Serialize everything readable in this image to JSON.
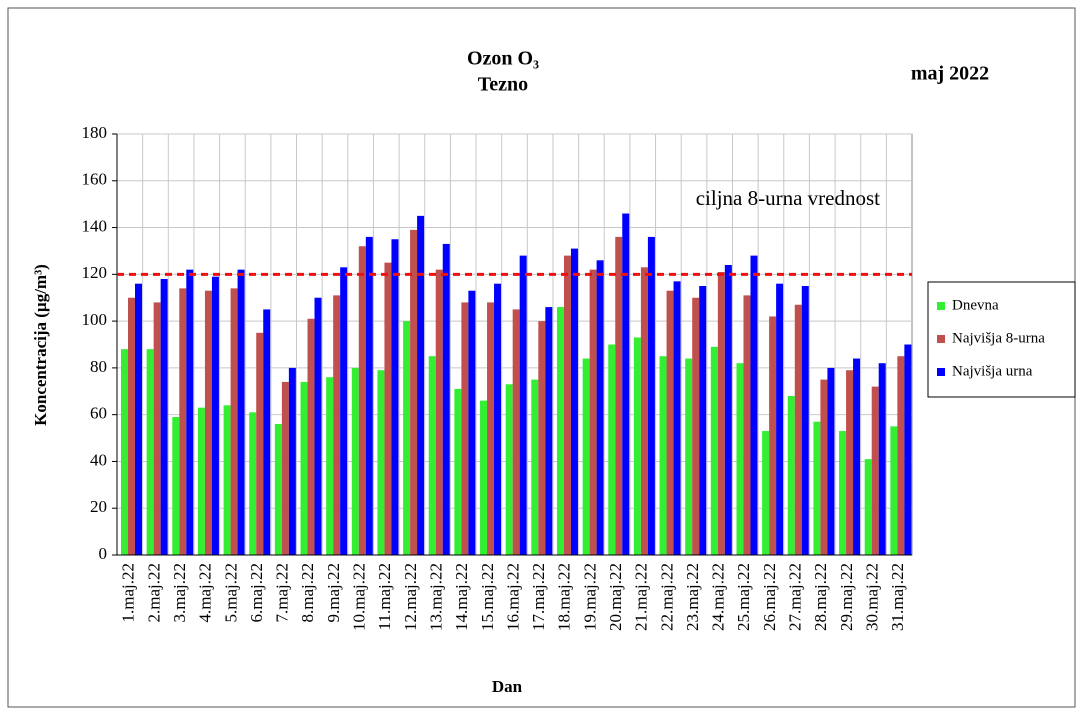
{
  "chart_data": {
    "type": "bar",
    "title": "Ozon O₃",
    "subtitle": "Tezno",
    "period": "maj 2022",
    "x_label": "Dan",
    "y_label": "Koncentracija  (µg/m³)",
    "categories": [
      "1.maj.22",
      "2.maj.22",
      "3.maj.22",
      "4.maj.22",
      "5.maj.22",
      "6.maj.22",
      "7.maj.22",
      "8.maj.22",
      "9.maj.22",
      "10.maj.22",
      "11.maj.22",
      "12.maj.22",
      "13.maj.22",
      "14.maj.22",
      "15.maj.22",
      "16.maj.22",
      "17.maj.22",
      "18.maj.22",
      "19.maj.22",
      "20.maj.22",
      "21.maj.22",
      "22.maj.22",
      "23.maj.22",
      "24.maj.22",
      "25.maj.22",
      "26.maj.22",
      "27.maj.22",
      "28.maj.22",
      "29.maj.22",
      "30.maj.22",
      "31.maj.22"
    ],
    "series": [
      {
        "name": "Dnevna",
        "color": "#33ee33",
        "values": [
          88,
          88,
          59,
          63,
          64,
          61,
          56,
          74,
          76,
          80,
          79,
          100,
          85,
          71,
          66,
          73,
          75,
          106,
          84,
          90,
          93,
          85,
          84,
          89,
          82,
          53,
          68,
          57,
          53,
          41,
          55
        ]
      },
      {
        "name": "Najvišja 8-urna",
        "color": "#c0504d",
        "values": [
          110,
          108,
          114,
          113,
          114,
          95,
          74,
          101,
          111,
          132,
          125,
          139,
          122,
          108,
          108,
          105,
          100,
          128,
          122,
          136,
          123,
          113,
          110,
          121,
          111,
          102,
          107,
          75,
          79,
          72,
          85
        ]
      },
      {
        "name": "Najvišja urna",
        "color": "#0000ff",
        "values": [
          116,
          118,
          122,
          119,
          122,
          105,
          80,
          110,
          123,
          136,
          135,
          145,
          133,
          113,
          116,
          128,
          106,
          131,
          126,
          146,
          136,
          117,
          115,
          124,
          128,
          116,
          115,
          80,
          84,
          82,
          90
        ]
      }
    ],
    "reference": {
      "value": 120,
      "label": "ciljna 8-urna vrednost",
      "color": "#ee1111"
    },
    "ylim": [
      0,
      180
    ],
    "yticks": [
      0,
      20,
      40,
      60,
      80,
      100,
      120,
      140,
      160,
      180
    ],
    "grid": true
  }
}
